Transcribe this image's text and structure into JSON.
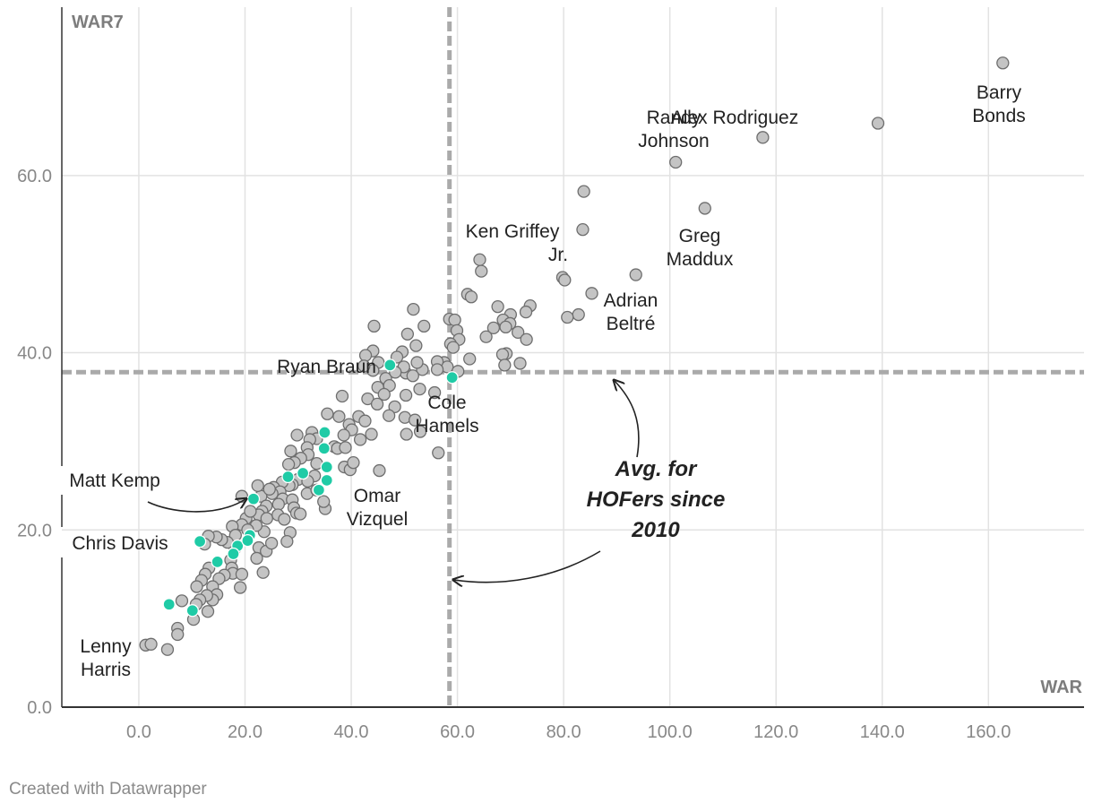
{
  "chart_data": {
    "type": "scatter",
    "xlabel": "WAR",
    "ylabel": "WAR7",
    "xlim": [
      -14.5,
      178
    ],
    "ylim": [
      0,
      79
    ],
    "x_ticks": [
      "0.0",
      "20.0",
      "40.0",
      "60.0",
      "80.0",
      "100.0",
      "120.0",
      "140.0",
      "160.0"
    ],
    "x_tick_values": [
      0,
      20,
      40,
      60,
      80,
      100,
      120,
      140,
      160
    ],
    "y_ticks": [
      "0.0",
      "20.0",
      "40.0",
      "60.0"
    ],
    "y_tick_values": [
      0,
      20,
      40,
      60
    ],
    "reference_lines": {
      "avg_hof_war": 58.5,
      "avg_hof_war7": 37.8
    },
    "annotation": "Avg. for HOFers since 2010",
    "colors": {
      "gray_point": "#c4c4c4",
      "highlight_point": "#1fcba6",
      "point_stroke": "#6e6e6e",
      "ref_line": "#aaaaaa"
    },
    "series": [
      {
        "name": "Players",
        "color": "#c4c4c4",
        "points": [
          [
            162.7,
            72.7
          ],
          [
            139.2,
            65.9
          ],
          [
            117.5,
            64.3
          ],
          [
            101.1,
            61.5
          ],
          [
            106.6,
            56.3
          ],
          [
            83.8,
            58.2
          ],
          [
            83.6,
            53.9
          ],
          [
            64.2,
            50.5
          ],
          [
            64.5,
            49.2
          ],
          [
            79.8,
            48.5
          ],
          [
            80.2,
            48.2
          ],
          [
            93.6,
            48.8
          ],
          [
            85.3,
            46.7
          ],
          [
            61.9,
            46.6
          ],
          [
            62.6,
            46.3
          ],
          [
            73.7,
            45.3
          ],
          [
            72.9,
            44.6
          ],
          [
            67.6,
            45.2
          ],
          [
            70.0,
            44.3
          ],
          [
            68.6,
            43.7
          ],
          [
            69.9,
            43.3
          ],
          [
            82.8,
            44.3
          ],
          [
            80.7,
            44.0
          ],
          [
            69.1,
            42.9
          ],
          [
            66.8,
            42.8
          ],
          [
            65.4,
            41.8
          ],
          [
            71.4,
            42.3
          ],
          [
            73.0,
            41.5
          ],
          [
            69.2,
            39.9
          ],
          [
            68.5,
            39.8
          ],
          [
            71.8,
            38.8
          ],
          [
            68.9,
            38.6
          ],
          [
            62.3,
            39.3
          ],
          [
            58.5,
            43.8
          ],
          [
            59.5,
            43.7
          ],
          [
            59.9,
            42.5
          ],
          [
            60.3,
            41.5
          ],
          [
            58.7,
            41.0
          ],
          [
            59.2,
            40.6
          ],
          [
            57.5,
            38.9
          ],
          [
            58.1,
            38.4
          ],
          [
            60.1,
            37.9
          ],
          [
            56.2,
            39.0
          ],
          [
            56.2,
            38.1
          ],
          [
            53.4,
            38.1
          ],
          [
            52.4,
            38.9
          ],
          [
            53.7,
            43.0
          ],
          [
            51.7,
            44.9
          ],
          [
            50.6,
            42.1
          ],
          [
            52.2,
            40.8
          ],
          [
            49.6,
            40.1
          ],
          [
            50.3,
            37.7
          ],
          [
            51.6,
            37.4
          ],
          [
            49.9,
            38.4
          ],
          [
            48.6,
            39.5
          ],
          [
            44.3,
            43.0
          ],
          [
            44.1,
            40.2
          ],
          [
            42.7,
            39.7
          ],
          [
            45.1,
            38.9
          ],
          [
            44.1,
            38.0
          ],
          [
            42.4,
            38.5
          ],
          [
            46.5,
            37.1
          ],
          [
            45.0,
            36.1
          ],
          [
            47.2,
            36.3
          ],
          [
            48.3,
            37.8
          ],
          [
            46.2,
            35.3
          ],
          [
            43.1,
            34.8
          ],
          [
            44.9,
            34.2
          ],
          [
            52.9,
            35.9
          ],
          [
            55.7,
            35.5
          ],
          [
            50.3,
            35.2
          ],
          [
            48.2,
            33.9
          ],
          [
            47.1,
            32.9
          ],
          [
            50.1,
            32.7
          ],
          [
            52.0,
            32.4
          ],
          [
            53.0,
            31.1
          ],
          [
            56.4,
            28.7
          ],
          [
            50.4,
            30.8
          ],
          [
            43.8,
            30.8
          ],
          [
            41.7,
            30.2
          ],
          [
            45.3,
            26.7
          ],
          [
            38.3,
            35.1
          ],
          [
            35.5,
            33.1
          ],
          [
            37.7,
            32.8
          ],
          [
            41.4,
            32.8
          ],
          [
            42.6,
            32.3
          ],
          [
            39.6,
            31.9
          ],
          [
            40.1,
            31.3
          ],
          [
            38.6,
            30.7
          ],
          [
            36.8,
            29.4
          ],
          [
            37.4,
            29.2
          ],
          [
            38.9,
            29.3
          ],
          [
            38.7,
            27.1
          ],
          [
            39.8,
            26.8
          ],
          [
            40.4,
            27.6
          ],
          [
            32.6,
            31.0
          ],
          [
            33.5,
            30.3
          ],
          [
            32.2,
            30.2
          ],
          [
            29.8,
            30.7
          ],
          [
            31.7,
            29.3
          ],
          [
            28.6,
            28.9
          ],
          [
            31.9,
            28.5
          ],
          [
            30.5,
            28.1
          ],
          [
            33.5,
            27.5
          ],
          [
            29.3,
            27.6
          ],
          [
            28.2,
            27.4
          ],
          [
            33.1,
            26.1
          ],
          [
            30.0,
            25.7
          ],
          [
            31.8,
            25.5
          ],
          [
            28.9,
            25.1
          ],
          [
            28.3,
            25.0
          ],
          [
            27.0,
            25.4
          ],
          [
            25.4,
            24.8
          ],
          [
            26.6,
            24.3
          ],
          [
            25.1,
            24.1
          ],
          [
            23.0,
            23.8
          ],
          [
            22.4,
            25.0
          ],
          [
            24.6,
            24.6
          ],
          [
            27.1,
            23.5
          ],
          [
            28.9,
            23.4
          ],
          [
            26.3,
            22.9
          ],
          [
            24.0,
            22.7
          ],
          [
            23.2,
            22.1
          ],
          [
            22.6,
            21.7
          ],
          [
            24.1,
            21.3
          ],
          [
            26.2,
            21.7
          ],
          [
            27.4,
            21.2
          ],
          [
            29.2,
            22.5
          ],
          [
            29.7,
            21.9
          ],
          [
            30.4,
            21.8
          ],
          [
            35.1,
            22.4
          ],
          [
            34.8,
            23.2
          ],
          [
            31.7,
            24.1
          ],
          [
            33.5,
            24.5
          ],
          [
            28.5,
            19.7
          ],
          [
            27.9,
            18.7
          ],
          [
            23.6,
            19.8
          ],
          [
            22.6,
            18.0
          ],
          [
            22.2,
            16.8
          ],
          [
            24.0,
            17.6
          ],
          [
            22.1,
            20.5
          ],
          [
            20.2,
            21.3
          ],
          [
            19.4,
            20.6
          ],
          [
            17.6,
            20.4
          ],
          [
            18.2,
            19.4
          ],
          [
            18.1,
            17.9
          ],
          [
            16.7,
            18.6
          ],
          [
            15.6,
            18.9
          ],
          [
            14.6,
            19.2
          ],
          [
            13.1,
            19.3
          ],
          [
            12.4,
            18.4
          ],
          [
            17.3,
            16.6
          ],
          [
            17.5,
            15.7
          ],
          [
            17.7,
            15.1
          ],
          [
            19.4,
            15.0
          ],
          [
            16.1,
            14.9
          ],
          [
            15.1,
            14.5
          ],
          [
            13.2,
            15.7
          ],
          [
            12.5,
            15.0
          ],
          [
            11.8,
            14.3
          ],
          [
            13.9,
            13.6
          ],
          [
            14.7,
            12.7
          ],
          [
            13.9,
            12.1
          ],
          [
            12.8,
            12.6
          ],
          [
            10.9,
            13.6
          ],
          [
            11.5,
            12.1
          ],
          [
            8.1,
            12.0
          ],
          [
            10.8,
            11.6
          ],
          [
            13.0,
            10.8
          ],
          [
            10.3,
            9.9
          ],
          [
            7.3,
            8.9
          ],
          [
            7.3,
            8.2
          ],
          [
            5.4,
            6.5
          ],
          [
            1.3,
            7.0
          ],
          [
            2.3,
            7.1
          ],
          [
            19.1,
            13.5
          ],
          [
            23.4,
            15.2
          ],
          [
            19.4,
            23.8
          ],
          [
            21.0,
            22.1
          ],
          [
            20.5,
            20.0
          ],
          [
            25.0,
            18.5
          ]
        ]
      },
      {
        "name": "Highlighted players",
        "color": "#1fcba6",
        "points": [
          [
            59.0,
            37.2
          ],
          [
            47.3,
            38.6
          ],
          [
            35.0,
            31.0
          ],
          [
            34.9,
            29.2
          ],
          [
            35.4,
            27.1
          ],
          [
            30.9,
            26.4
          ],
          [
            28.1,
            26.0
          ],
          [
            35.4,
            25.6
          ],
          [
            33.9,
            24.5
          ],
          [
            21.6,
            23.5
          ],
          [
            11.5,
            18.7
          ],
          [
            20.9,
            19.4
          ],
          [
            18.6,
            18.2
          ],
          [
            20.5,
            18.8
          ],
          [
            17.8,
            17.3
          ],
          [
            14.8,
            16.4
          ],
          [
            5.7,
            11.6
          ],
          [
            10.1,
            10.9
          ]
        ]
      }
    ],
    "labels": [
      {
        "line1": "Barry",
        "line2": "Bonds"
      },
      {
        "line1": "Alex Rodriguez",
        "line2": ""
      },
      {
        "line1": "Randy",
        "line2": "Johnson"
      },
      {
        "line1": "Greg",
        "line2": "Maddux"
      },
      {
        "line1": "Ken Griffey",
        "line2": "Jr."
      },
      {
        "line1": "Adrian",
        "line2": "Beltré"
      },
      {
        "line1": "Ryan Braun",
        "line2": ""
      },
      {
        "line1": "Cole",
        "line2": "Hamels"
      },
      {
        "line1": "Omar",
        "line2": "Vizquel"
      },
      {
        "line1": "Matt Kemp",
        "line2": ""
      },
      {
        "line1": "Chris Davis",
        "line2": ""
      },
      {
        "line1": "Lenny",
        "line2": "Harris"
      }
    ]
  },
  "footer": {
    "credit": "Created with Datawrapper"
  },
  "annotation_lines": [
    "Avg. for",
    "HOFers since",
    "2010"
  ]
}
